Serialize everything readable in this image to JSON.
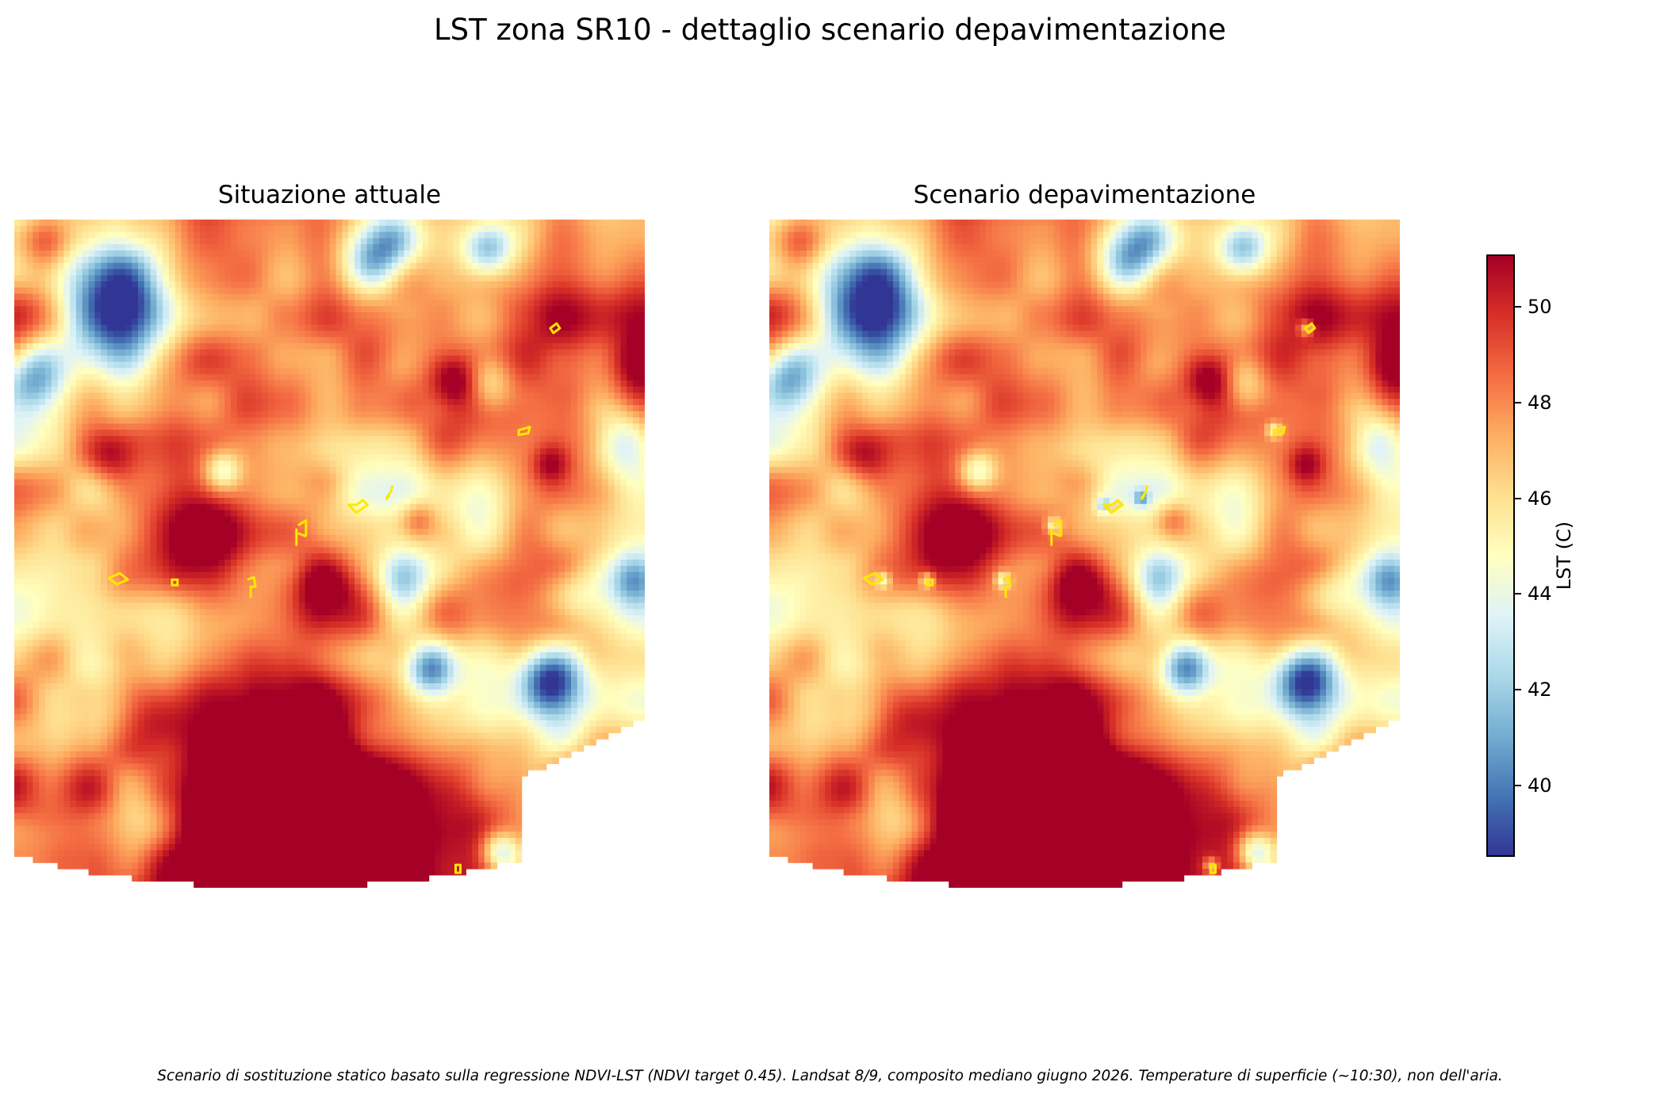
{
  "title": "LST zona SR10 - dettaglio scenario depavimentazione",
  "footnote": "Scenario di sostituzione statico basato sulla regressione NDVI-LST (NDVI target 0.45). Landsat 8/9, composito mediano giugno 2026. Temperature di superficie (~10:30), non dell'aria.",
  "chart_data": {
    "type": "heatmap",
    "panels": [
      {
        "title": "Situazione attuale",
        "scenario": "current"
      },
      {
        "title": "Scenario depavimentazione",
        "scenario": "depaving"
      }
    ],
    "colormap": "RdYlBu_r",
    "colormap_colors": [
      "#313695",
      "#4575b4",
      "#74add1",
      "#abd9e9",
      "#e0f3f8",
      "#ffffbf",
      "#fee090",
      "#fdae61",
      "#f46d43",
      "#d73027",
      "#a50026"
    ],
    "outline_color": "#ffe800",
    "colorbar": {
      "label": "LST (C)",
      "vmin": 38.5,
      "vmax": 51.1,
      "ticks": [
        40,
        42,
        44,
        46,
        48,
        50
      ],
      "tick_labels": [
        "40",
        "42",
        "44",
        "46",
        "48",
        "50"
      ]
    },
    "field_features": {
      "hot_zones": [
        {
          "cx": 0.46,
          "cy": 0.78,
          "r": 0.16,
          "v": 53
        },
        {
          "cx": 0.36,
          "cy": 0.93,
          "r": 0.14,
          "v": 53
        },
        {
          "cx": 0.52,
          "cy": 0.92,
          "r": 0.12,
          "v": 52
        },
        {
          "cx": 0.3,
          "cy": 0.5,
          "r": 0.09,
          "v": 52
        },
        {
          "cx": 0.49,
          "cy": 0.55,
          "r": 0.06,
          "v": 52
        },
        {
          "cx": 0.7,
          "cy": 0.24,
          "r": 0.04,
          "v": 51
        },
        {
          "cx": 0.99,
          "cy": 0.21,
          "r": 0.04,
          "v": 51
        },
        {
          "cx": 0.88,
          "cy": 0.82,
          "r": 0.04,
          "v": 51
        },
        {
          "cx": 0.05,
          "cy": 0.03,
          "r": 0.04,
          "v": 51
        },
        {
          "cx": 0.64,
          "cy": 0.44,
          "r": 0.03,
          "v": 50
        },
        {
          "cx": 0.15,
          "cy": 0.35,
          "r": 0.04,
          "v": 50
        },
        {
          "cx": 0.23,
          "cy": 0.73,
          "r": 0.05,
          "v": 50
        },
        {
          "cx": 0.85,
          "cy": 0.36,
          "r": 0.03,
          "v": 50
        }
      ],
      "cool_zones": [
        {
          "cx": 0.58,
          "cy": 0.04,
          "r": 0.06,
          "v": 38
        },
        {
          "cx": 0.17,
          "cy": 0.12,
          "r": 0.09,
          "v": 40
        },
        {
          "cx": 0.75,
          "cy": 0.04,
          "r": 0.04,
          "v": 41
        },
        {
          "cx": 0.85,
          "cy": 0.68,
          "r": 0.05,
          "v": 40
        },
        {
          "cx": 0.66,
          "cy": 0.66,
          "r": 0.04,
          "v": 41
        },
        {
          "cx": 0.97,
          "cy": 0.33,
          "r": 0.05,
          "v": 42
        },
        {
          "cx": 0.03,
          "cy": 0.23,
          "r": 0.05,
          "v": 42
        },
        {
          "cx": 0.88,
          "cy": 0.55,
          "r": 0.05,
          "v": 43
        },
        {
          "cx": 0.62,
          "cy": 0.53,
          "r": 0.04,
          "v": 43
        },
        {
          "cx": 0.33,
          "cy": 0.37,
          "r": 0.03,
          "v": 43
        },
        {
          "cx": 0.75,
          "cy": 0.24,
          "r": 0.04,
          "v": 44
        },
        {
          "cx": 0.98,
          "cy": 0.53,
          "r": 0.04,
          "v": 43
        },
        {
          "cx": 0.19,
          "cy": 0.89,
          "r": 0.05,
          "v": 43
        },
        {
          "cx": 0.77,
          "cy": 0.93,
          "r": 0.03,
          "v": 42
        }
      ],
      "depaving_sites": [
        {
          "cx": 0.18,
          "cy": 0.53
        },
        {
          "cx": 0.25,
          "cy": 0.53
        },
        {
          "cx": 0.37,
          "cy": 0.53
        },
        {
          "cx": 0.45,
          "cy": 0.45
        },
        {
          "cx": 0.53,
          "cy": 0.42
        },
        {
          "cx": 0.59,
          "cy": 0.41
        },
        {
          "cx": 0.8,
          "cy": 0.31
        },
        {
          "cx": 0.85,
          "cy": 0.16
        },
        {
          "cx": 0.7,
          "cy": 0.95
        }
      ],
      "depaving_delta": -3.5
    }
  }
}
